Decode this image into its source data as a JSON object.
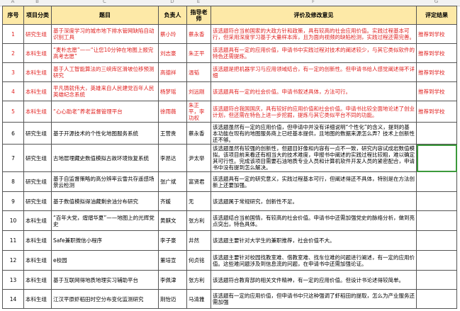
{
  "column_letters": [
    "A",
    "B",
    "C",
    "D",
    "E",
    "F",
    "G"
  ],
  "headers": [
    "序号",
    "项目分类",
    "题目",
    "负责人",
    "指导老师",
    "评价及修改意见",
    "评定结果"
  ],
  "colors": {
    "header_fill": "#fde9a7",
    "recommended_text": "#e0201f",
    "selection": "#3c9a3c"
  },
  "rows": [
    {
      "no": "1",
      "category": "研究生组",
      "title": "基于深度学习的城市地下排水管网缺陷自动识别工具",
      "leader": "蔡小玲",
      "advisor": "蔡永香",
      "comment": "该选题符合当前国家的大政方针和政策，具有较高的社会应用价值。实践过程基本可行，但采用深度学习基于大量样本库，且为面向视频的缺陷检测，实践过程还需完善。",
      "result": "推荐到学校"
    },
    {
      "no": "2",
      "category": "本科生组",
      "title": "“麦朴志愿”——“让您10分钟在地图上报完高考志愿”",
      "leader": "刘志豪",
      "advisor": "朱正平",
      "comment": "该选题具有一定的应用价值，申请书中实践过程对技术的阐述较少，与其它类似软件的特色还需提炼。",
      "result": "推荐到学校"
    },
    {
      "no": "3",
      "category": "本科生组",
      "title": "基于人工智能算法的三峡库区滑坡位移预测研究",
      "leader": "高德祥",
      "advisor": "温韬",
      "comment": "该选题是把机器学习与应用领域结合，有一定的创新性。但申请书给人感觉阐述得不详细",
      "result": "推荐到学校"
    },
    {
      "no": "4",
      "category": "本科生组",
      "title": "平凡铸就伟大，英雄来自人民建党百年人民英雄纪念系统",
      "leader": "杨梦瑶",
      "advisor": "刘远刚",
      "comment": "该选题具有一定的社会价值。申请书叙述具体，方法可行。",
      "result": "推荐到学校"
    },
    {
      "no": "5",
      "category": "本科生组",
      "title": "“心心助老”养老监督管理平台",
      "leader": "徐雨薇",
      "advisor": "朱正平，李功权",
      "comment": "该选题符合我国国庆，具有较好的应用价值和社会价值。申请书比较全面地论述了创业计划，但还需在特色上进一步挖掘，提炼与其它类似平台不同的功能。",
      "result": "推荐到学校"
    },
    {
      "no": "6",
      "category": "研究生组",
      "title": "基于开源技术的个性化地图服务系统",
      "leader": "王营贵",
      "advisor": "蔡永香",
      "comment": "该选题虽然有一定的应用价值，但申请中并没有详细说明“个性化”的含义，提到的基本功能在现有的地图服务商上已经基本提供，且地图的数据来源怎么弄？技术上创新性还不够。",
      "result": ""
    },
    {
      "no": "7",
      "category": "研究生组",
      "title": "古地层埋藏史数值模拟古故环境恢复系统",
      "leader": "李昂达",
      "advisor": "尹太举",
      "comment": "该选题虽然有较强的创新性，但题目好像和内容有一点不一致，研究内容试成岩数值模拟。该项目前来看还有相当大的技术难度，申报书中阐述的实践过程比较粗，难以确定其可行性。完成该项目需要石油地质专业人员和计算机软件开发人员的紧密配合，申请书中没有提到怎么解决。",
      "result": ""
    },
    {
      "no": "8",
      "category": "研究生组",
      "title": "基于自监督策略的高分辨率云雪共存遥感场景云检测",
      "leader": "张广斌",
      "advisor": "富贤君",
      "comment": "该选题具有一定的研究意义，实践过程基本可行，但阐述得还不具体，特别是在方法创新上还要加强。",
      "result": ""
    },
    {
      "no": "9",
      "category": "研究生组",
      "title": "基于数值模拟得油藏剩余油分布研究",
      "leader": "齐媛",
      "advisor": "无",
      "comment": "该选题属于常规研究，创新性不足。",
      "result": ""
    },
    {
      "no": "10",
      "category": "本科生组",
      "title": "“百年大党，熠熠华夏”——地图上的光辉党史",
      "leader": "黄麒文",
      "advisor": "张方利",
      "comment": "该选题结合当前国情，有较高的社会价值。申请书中还需加强党史的脉络分析，做到亮点突出，特色具体。",
      "result": ""
    },
    {
      "no": "11",
      "category": "本科生组",
      "title": "Safe兼职微信小程序",
      "leader": "李子豪",
      "advisor": "井然",
      "comment": "该选题主要针对大学生的兼职推荐，社会价值不大。",
      "result": ""
    },
    {
      "no": "12",
      "category": "本科生组",
      "title": "e校园",
      "leader": "董培宣",
      "advisor": "何贞铭",
      "comment": "该选题主要针对校园找教室难、借教室难、找车位难的问题进行阐述，有一定的应用价值。这些难问题涉及到信息流的问题，在申请书中还需加强论证。",
      "result": ""
    },
    {
      "no": "13",
      "category": "本科生组",
      "title": "基于互联网得地质地理实习辅助平台",
      "leader": "李佩津",
      "advisor": "张方利",
      "comment": "该选题符合教育部的相关文件精神，有一定的应用价值。但设计书论述得较简单。",
      "result": ""
    },
    {
      "no": "14",
      "category": "本科生组",
      "title": "江汉平原虾稻田时空分布变化监测研究",
      "leader": "荆怡迈",
      "advisor": "马清雅",
      "comment": "该选题有一定的应用价值，但申请书中只这种强调了虾稻田的提取，怎么为产业服务还需加强",
      "result": ""
    }
  ]
}
